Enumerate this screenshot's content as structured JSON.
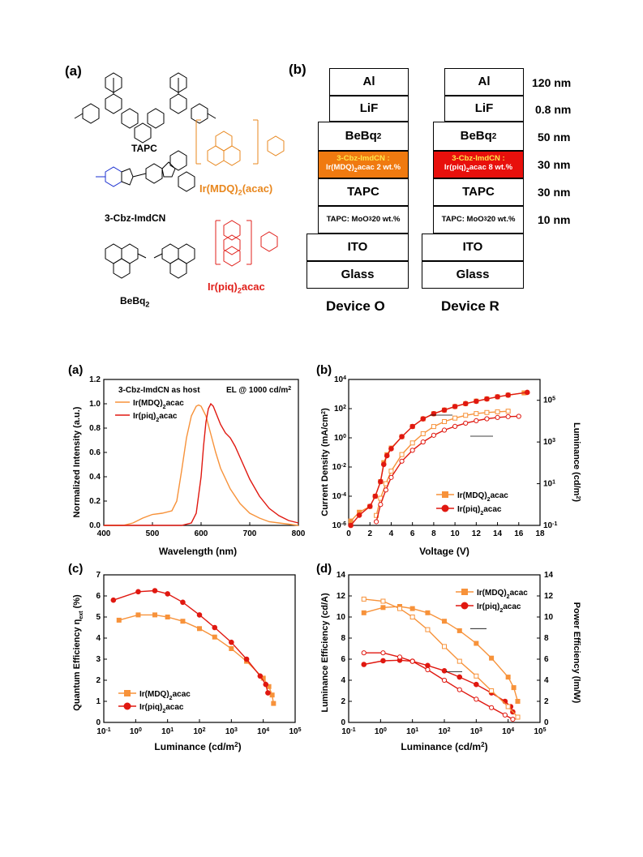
{
  "top": {
    "panel_a_label": "(a)",
    "panel_b_label": "(b)",
    "compounds": {
      "tapc": "TAPC",
      "cbz": "3-Cbz-ImdCN",
      "bebq2_base": "BeBq",
      "bebq2_sub": "2",
      "mdq": "Ir(MDQ)",
      "mdq_sub": "2",
      "mdq_tail": "(acac)",
      "piq": "Ir(piq)",
      "piq_sub": "2",
      "piq_tail": "acac"
    },
    "colors": {
      "orange": "#e8871e",
      "red": "#e0201b",
      "blue": "#1a2fd0"
    },
    "device_o": {
      "label": "Device O",
      "al": "Al",
      "lif": "LiF",
      "bebq": "BeBq",
      "bebq_sub": "2",
      "eml_line1": "3-Cbz-ImdCN :",
      "eml_line2a": "Ir(MDQ)",
      "eml_line2sub": "2",
      "eml_line2b": "acac 2 wt.%",
      "tapc": "TAPC",
      "moo3_a": "TAPC: MoO",
      "moo3_sub": "3",
      "moo3_b": " 20 wt.%",
      "ito": "ITO",
      "glass": "Glass",
      "eml_color": "#f07a10"
    },
    "device_r": {
      "label": "Device R",
      "al": "Al",
      "lif": "LiF",
      "bebq": "BeBq",
      "bebq_sub": "2",
      "eml_line1": "3-Cbz-ImdCN :",
      "eml_line2a": "Ir(piq)",
      "eml_line2sub": "2",
      "eml_line2b": "acac 8 wt.%",
      "tapc": "TAPC",
      "moo3_a": "TAPC: MoO",
      "moo3_sub": "3",
      "moo3_b": " 20 wt.%",
      "ito": "ITO",
      "glass": "Glass",
      "eml_color": "#e8100c"
    },
    "thickness": [
      "120 nm",
      "0.8 nm",
      "50 nm",
      "30 nm",
      "30 nm",
      "10 nm"
    ]
  },
  "chart_data": [
    {
      "panel": "(a)",
      "type": "line",
      "xlabel": "Wavelength (nm)",
      "ylabel": "Normalized Intensity (a.u.)",
      "xlim": [
        400,
        800
      ],
      "ylim": [
        0,
        1.2
      ],
      "xticks": [
        400,
        500,
        600,
        700,
        800
      ],
      "yticks": [
        0.0,
        0.2,
        0.4,
        0.6,
        0.8,
        1.0,
        1.2
      ],
      "annotations": [
        "3-Cbz-ImdCN as host",
        "EL @ 1000 cd/m2"
      ],
      "series": [
        {
          "name": "Ir(MDQ)2acac",
          "color": "#f7923a",
          "x": [
            400,
            440,
            460,
            480,
            500,
            520,
            540,
            550,
            560,
            570,
            580,
            590,
            595,
            600,
            610,
            620,
            630,
            640,
            660,
            680,
            700,
            720,
            740,
            760,
            780,
            800
          ],
          "y": [
            0.0,
            0.0,
            0.02,
            0.06,
            0.09,
            0.1,
            0.12,
            0.2,
            0.45,
            0.72,
            0.9,
            0.98,
            0.99,
            0.98,
            0.9,
            0.75,
            0.6,
            0.47,
            0.3,
            0.18,
            0.1,
            0.06,
            0.03,
            0.02,
            0.01,
            0.0
          ]
        },
        {
          "name": "Ir(piq)2acac",
          "color": "#e01810",
          "x": [
            400,
            560,
            580,
            590,
            600,
            605,
            610,
            615,
            620,
            625,
            630,
            640,
            650,
            660,
            670,
            680,
            700,
            720,
            740,
            760,
            780,
            800
          ],
          "y": [
            0.0,
            0.0,
            0.02,
            0.1,
            0.4,
            0.65,
            0.85,
            0.96,
            1.0,
            0.98,
            0.93,
            0.83,
            0.76,
            0.72,
            0.65,
            0.56,
            0.38,
            0.24,
            0.14,
            0.08,
            0.04,
            0.02
          ]
        }
      ]
    },
    {
      "panel": "(b)",
      "type": "scatter",
      "xlabel": "Voltage (V)",
      "ylabel": "Current Density (mA/cm2)",
      "y2label": "Luminance (cd/m2)",
      "xlim": [
        0,
        18
      ],
      "ylim_log": [
        -6,
        4
      ],
      "y2lim_log": [
        -1,
        6
      ],
      "xticks": [
        0,
        2,
        4,
        6,
        8,
        10,
        12,
        14,
        16,
        18
      ],
      "yticks": [
        "10-6",
        "10-4",
        "10-2",
        "100",
        "102",
        "104"
      ],
      "y2ticks": [
        "10-1",
        "101",
        "103",
        "105"
      ],
      "series": [
        {
          "name": "Ir(MDQ)2acac",
          "color": "#f7923a",
          "marker": "square",
          "x": [
            0.2,
            1,
            2,
            2.5,
            3,
            3.3,
            3.6,
            4,
            5,
            6,
            7,
            8,
            9,
            10,
            11,
            12,
            13,
            14,
            15,
            16.5
          ],
          "y": [
            2e-06,
            8e-06,
            2e-05,
            0.0001,
            0.001,
            0.02,
            0.07,
            0.2,
            1.2,
            6,
            20,
            45,
            80,
            140,
            220,
            330,
            470,
            650,
            850,
            1200
          ]
        },
        {
          "name": "Ir(piq)2acac",
          "color": "#e01810",
          "marker": "circle",
          "x": [
            0.2,
            1,
            2,
            2.5,
            3,
            3.3,
            3.6,
            4,
            5,
            6,
            7,
            8,
            9,
            10,
            11,
            12,
            13,
            14,
            15,
            16.8
          ],
          "y": [
            1e-06,
            5e-06,
            2e-05,
            0.0001,
            0.001,
            0.015,
            0.06,
            0.18,
            1.2,
            6,
            20,
            45,
            80,
            140,
            220,
            320,
            460,
            650,
            850,
            1300
          ]
        },
        {
          "name": "Ir(MDQ)2acac luminance",
          "color": "#f7923a",
          "marker": "open-square",
          "axis": "y2",
          "x": [
            2.6,
            3,
            3.5,
            4,
            5,
            6,
            7,
            8,
            9,
            10,
            11,
            12,
            13,
            14,
            15
          ],
          "y": [
            0.3,
            2,
            10,
            40,
            250,
            900,
            2500,
            5500,
            9500,
            14000,
            19000,
            23000,
            26000,
            28000,
            30000
          ]
        },
        {
          "name": "Ir(piq)2acac luminance",
          "color": "#e01810",
          "marker": "open-circle",
          "axis": "y2",
          "x": [
            2.6,
            3,
            3.5,
            4,
            5,
            6,
            7,
            8,
            9,
            10,
            11,
            12,
            13,
            14,
            15,
            16
          ],
          "y": [
            0.15,
            1,
            5,
            20,
            120,
            400,
            1000,
            2100,
            3700,
            5600,
            8000,
            10500,
            13000,
            15000,
            16500,
            17000
          ]
        }
      ]
    },
    {
      "panel": "(c)",
      "type": "scatter",
      "xlabel": "Luminance (cd/m2)",
      "ylabel": "Quantum Efficiency ηext (%)",
      "xlim_log": [
        -1,
        5
      ],
      "ylim": [
        0,
        7
      ],
      "yticks": [
        0,
        1,
        2,
        3,
        4,
        5,
        6,
        7
      ],
      "xticks": [
        "10-1",
        "100",
        "101",
        "102",
        "103",
        "104",
        "105"
      ],
      "series": [
        {
          "name": "Ir(MDQ)2acac",
          "color": "#f7923a",
          "marker": "square",
          "x": [
            0.3,
            1.2,
            4,
            10,
            30,
            100,
            300,
            1000,
            3000,
            10000,
            15000,
            19000,
            21000
          ],
          "y": [
            4.85,
            5.1,
            5.1,
            5.0,
            4.8,
            4.45,
            4.05,
            3.5,
            2.9,
            2.1,
            1.7,
            1.3,
            0.9
          ]
        },
        {
          "name": "Ir(piq)2acac",
          "color": "#e01810",
          "marker": "circle",
          "x": [
            0.2,
            1.2,
            4,
            10,
            30,
            100,
            300,
            1000,
            3000,
            8000,
            12000,
            14000
          ],
          "y": [
            5.8,
            6.2,
            6.25,
            6.1,
            5.7,
            5.1,
            4.5,
            3.8,
            3.0,
            2.2,
            1.8,
            1.4
          ]
        }
      ]
    },
    {
      "panel": "(d)",
      "type": "scatter",
      "xlabel": "Luminance (cd/m2)",
      "ylabel": "Luminance Efficiency (cd/A)",
      "y2label": "Power Efficiency (lm/W)",
      "xlim_log": [
        -1,
        5
      ],
      "ylim": [
        0,
        14
      ],
      "y2lim": [
        0,
        14
      ],
      "yticks": [
        0,
        2,
        4,
        6,
        8,
        10,
        12,
        14
      ],
      "xticks": [
        "10-1",
        "100",
        "101",
        "102",
        "103",
        "104",
        "105"
      ],
      "series": [
        {
          "name": "Ir(MDQ)2acac",
          "color": "#f7923a",
          "marker": "square",
          "x": [
            0.3,
            1.2,
            4,
            10,
            30,
            100,
            300,
            1000,
            3000,
            10000,
            15000,
            20000
          ],
          "y": [
            10.4,
            10.9,
            11.0,
            10.8,
            10.4,
            9.6,
            8.7,
            7.5,
            6.1,
            4.3,
            3.3,
            2.0
          ]
        },
        {
          "name": "Ir(piq)2acac",
          "color": "#e01810",
          "marker": "circle",
          "x": [
            0.3,
            1.2,
            4,
            10,
            30,
            100,
            300,
            1000,
            3000,
            8000,
            12000,
            14000
          ],
          "y": [
            5.5,
            5.85,
            5.9,
            5.8,
            5.4,
            4.9,
            4.3,
            3.6,
            2.8,
            2.0,
            1.5,
            1.0
          ]
        },
        {
          "name": "Ir(MDQ)2acac PE",
          "color": "#f7923a",
          "marker": "open-square",
          "axis": "y2",
          "x": [
            0.3,
            1.2,
            4,
            10,
            30,
            100,
            300,
            1000,
            3000,
            10000,
            20000
          ],
          "y": [
            11.7,
            11.5,
            10.8,
            10.0,
            8.8,
            7.2,
            5.8,
            4.4,
            3.0,
            1.5,
            0.5
          ]
        },
        {
          "name": "Ir(piq)2acac PE",
          "color": "#e01810",
          "marker": "open-circle",
          "axis": "y2",
          "x": [
            0.3,
            1.2,
            4,
            10,
            30,
            100,
            300,
            1000,
            3000,
            8000,
            14000
          ],
          "y": [
            6.6,
            6.6,
            6.2,
            5.8,
            5.0,
            4.0,
            3.1,
            2.2,
            1.4,
            0.7,
            0.3
          ]
        }
      ]
    }
  ],
  "bottom": {
    "panel_a_label": "(a)",
    "panel_b_label": "(b)",
    "panel_c_label": "(c)",
    "panel_d_label": "(d)",
    "a_xlabel": "Wavelength (nm)",
    "a_ylabel": "Normalized Intensity (a.u.)",
    "a_note_host": "3-Cbz-ImdCN as host",
    "a_note_el": "EL @ 1000 cd/m",
    "legend_mdq_base": "Ir(MDQ)",
    "legend_mdq_tail": "acac",
    "legend_piq_base": "Ir(piq)",
    "legend_piq_tail": "acac",
    "b_xlabel": "Voltage (V)",
    "b_ylabel": "Current Density (mA/cm",
    "b_y2label": "Luminance (cd/m",
    "c_xlabel": "Luminance (cd/m",
    "c_ylabel": "Quantum Efficiency η",
    "c_ylabel_sub": "ext",
    "c_ylabel_tail": " (%)",
    "d_xlabel": "Luminance (cd/m",
    "d_ylabel": "Luminance Efficiency (cd/A)",
    "d_y2label": "Power Efficiency (lm/W)",
    "sub_2": "2"
  }
}
